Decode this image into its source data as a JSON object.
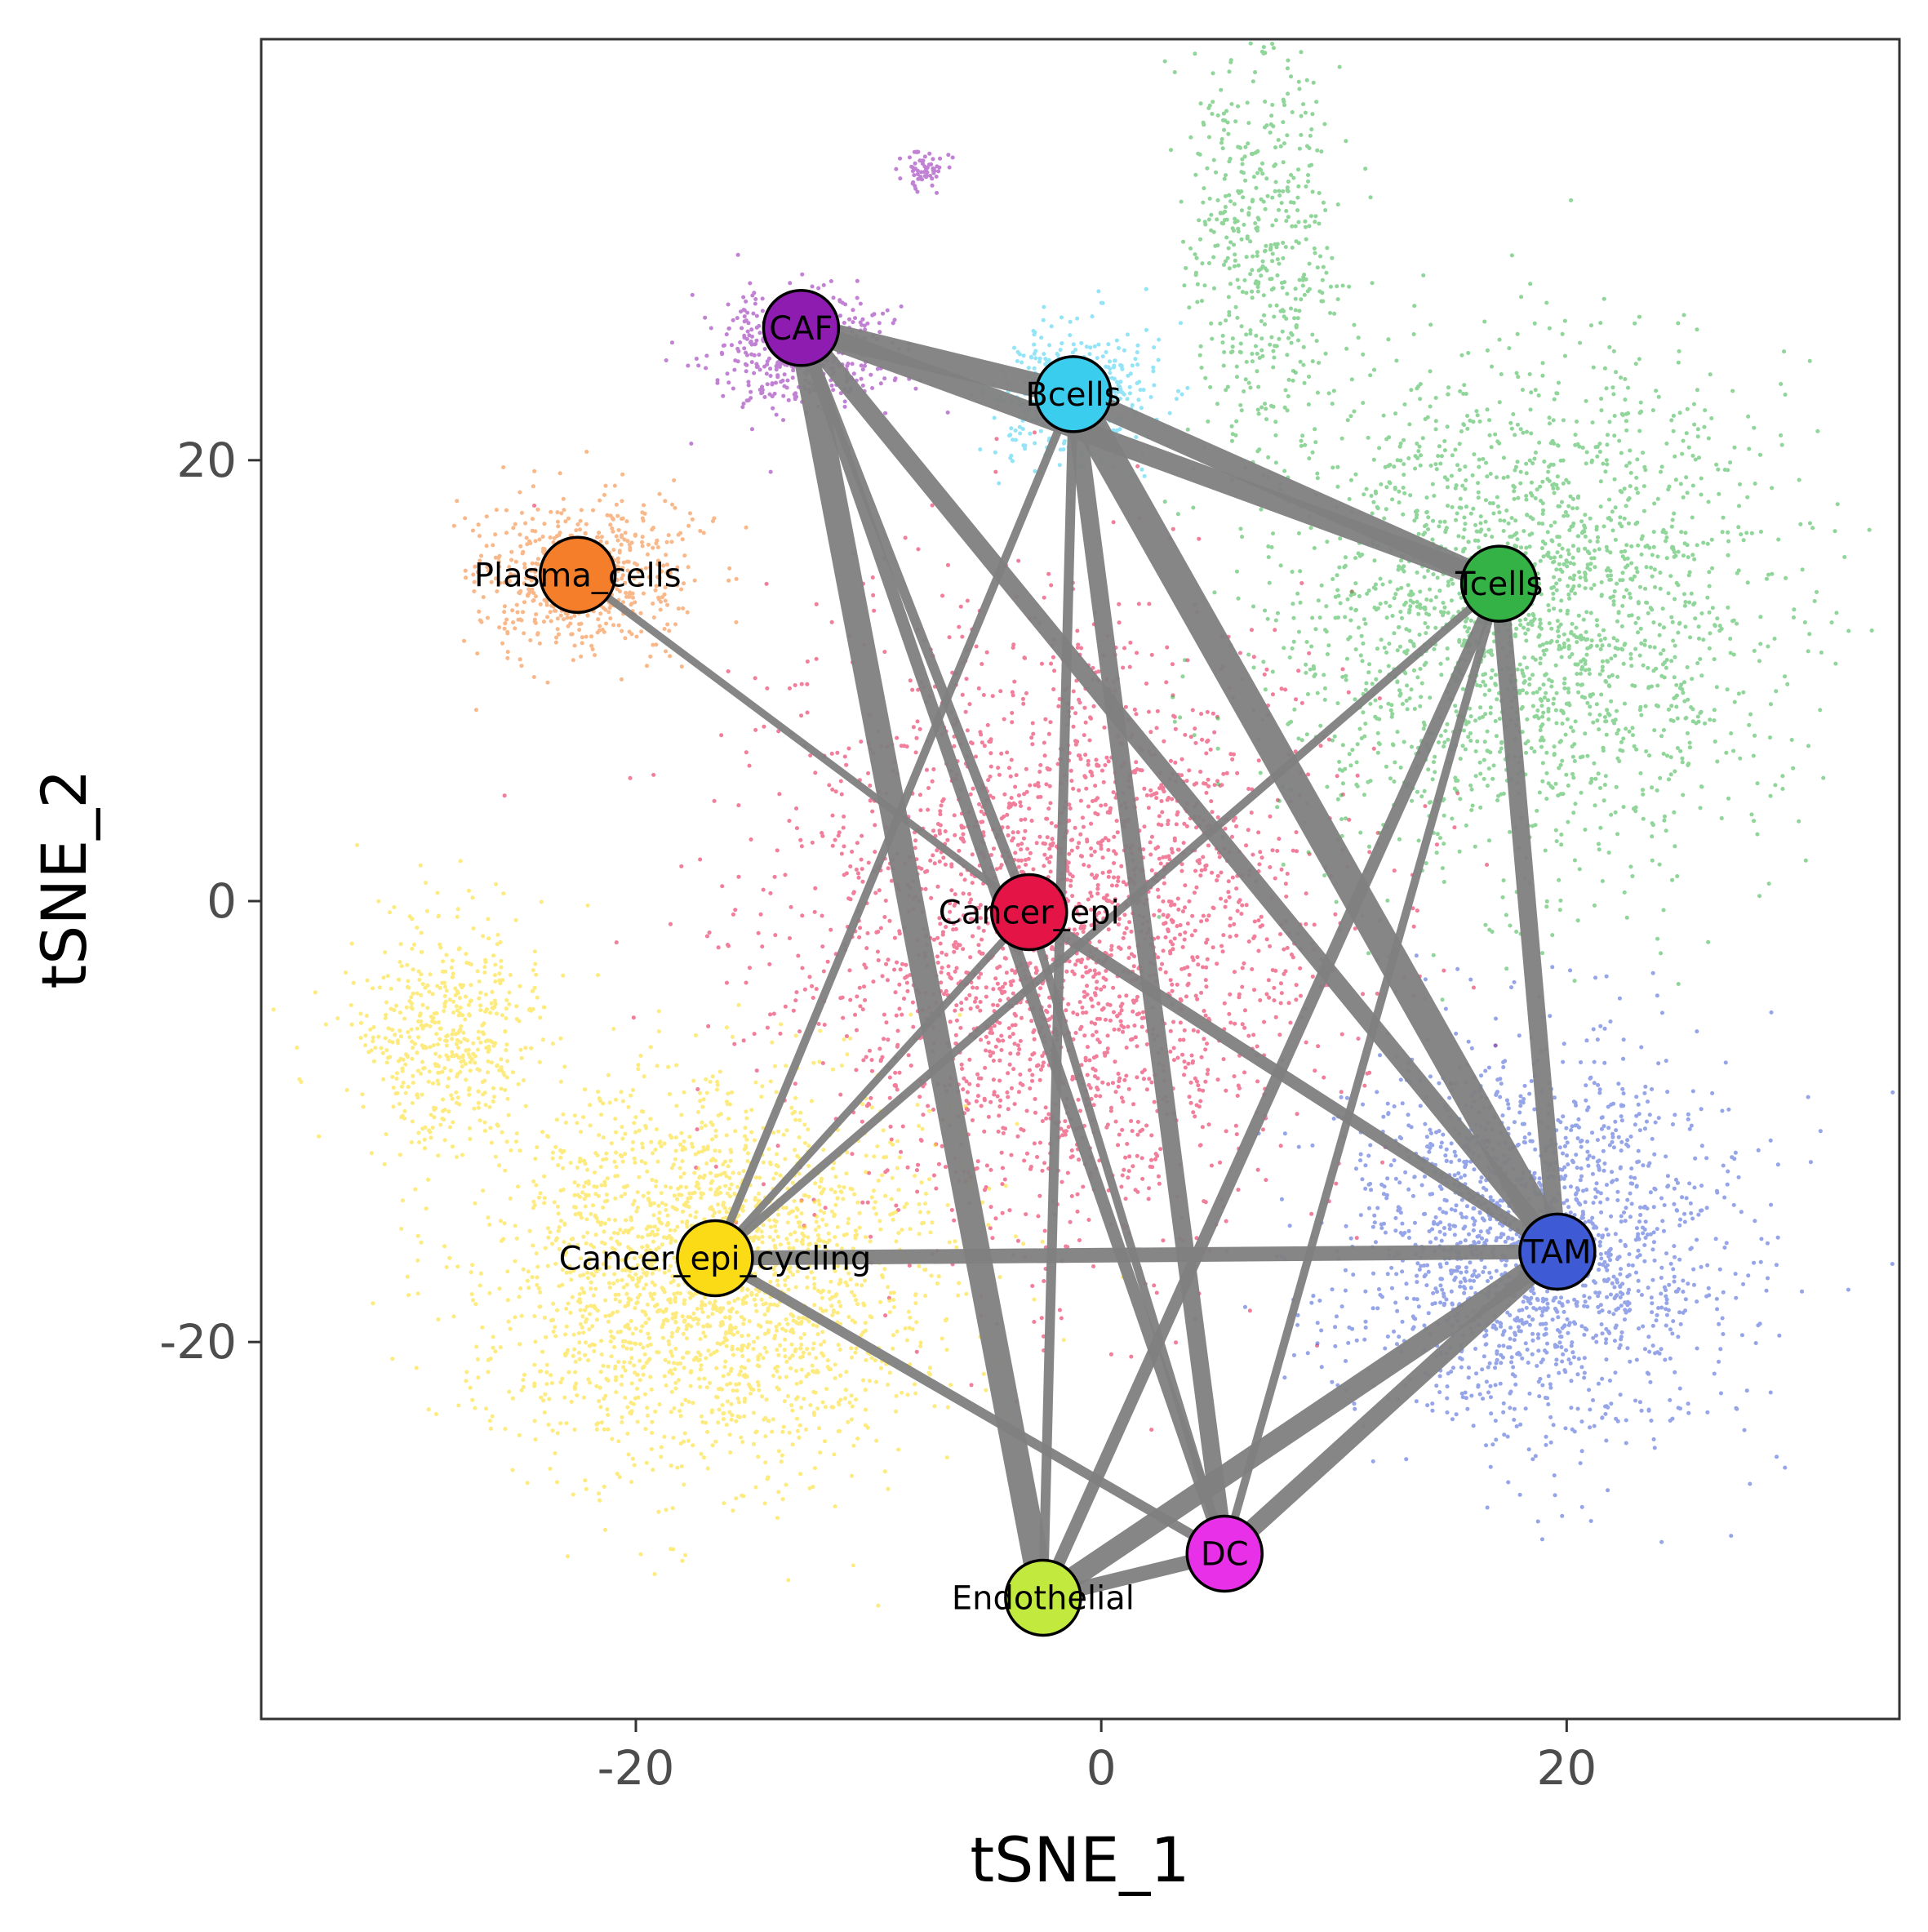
{
  "chart_data": {
    "type": "scatter",
    "title": "",
    "xlabel": "tSNE_1",
    "ylabel": "tSNE_2",
    "xlim": [
      -36.1,
      34.3
    ],
    "ylim": [
      -37.1,
      39.1
    ],
    "xticks": [
      -20,
      0,
      20
    ],
    "yticks": [
      -20,
      0,
      20
    ],
    "xtick_labels": [
      "-20",
      "0",
      "20"
    ],
    "ytick_labels": [
      "-20",
      "0",
      "20"
    ],
    "grid": false,
    "legend": "none",
    "edge_color": "#7f7f7f",
    "clusters": [
      {
        "name": "CAF",
        "color": "#8e1cb0",
        "x": -12.9,
        "y": 26.0
      },
      {
        "name": "Bcells",
        "color": "#3bcdee",
        "x": -1.2,
        "y": 23.0
      },
      {
        "name": "Tcells",
        "color": "#35b245",
        "x": 17.1,
        "y": 14.4
      },
      {
        "name": "Plasma_cells",
        "color": "#f47e2a",
        "x": -22.5,
        "y": 14.8
      },
      {
        "name": "Cancer_epi",
        "color": "#e51447",
        "x": -3.1,
        "y": -0.5
      },
      {
        "name": "Cancer_epi_cycling",
        "color": "#fbdb16",
        "x": -16.6,
        "y": -16.2
      },
      {
        "name": "TAM",
        "color": "#3e5bd5",
        "x": 19.6,
        "y": -15.9
      },
      {
        "name": "DC",
        "color": "#e830e8",
        "x": 5.3,
        "y": -29.6
      },
      {
        "name": "Endothelial",
        "color": "#c2ea3e",
        "x": -2.5,
        "y": -31.6
      }
    ],
    "edges": [
      {
        "from": "CAF",
        "to": "Bcells",
        "weight": 3.0
      },
      {
        "from": "CAF",
        "to": "Tcells",
        "weight": 2.5
      },
      {
        "from": "CAF",
        "to": "Endothelial",
        "weight": 3.2
      },
      {
        "from": "CAF",
        "to": "TAM",
        "weight": 2.2
      },
      {
        "from": "CAF",
        "to": "DC",
        "weight": 1.5
      },
      {
        "from": "CAF",
        "to": "Cancer_epi",
        "weight": 1.2
      },
      {
        "from": "Bcells",
        "to": "Tcells",
        "weight": 2.6
      },
      {
        "from": "Bcells",
        "to": "TAM",
        "weight": 3.8
      },
      {
        "from": "Bcells",
        "to": "DC",
        "weight": 2.2
      },
      {
        "from": "Bcells",
        "to": "Cancer_epi_cycling",
        "weight": 1.0
      },
      {
        "from": "Bcells",
        "to": "Endothelial",
        "weight": 1.2
      },
      {
        "from": "Tcells",
        "to": "TAM",
        "weight": 2.2
      },
      {
        "from": "Tcells",
        "to": "Cancer_epi_cycling",
        "weight": 1.0
      },
      {
        "from": "Tcells",
        "to": "DC",
        "weight": 1.0
      },
      {
        "from": "Tcells",
        "to": "Endothelial",
        "weight": 1.5
      },
      {
        "from": "Plasma_cells",
        "to": "Cancer_epi",
        "weight": 0.9
      },
      {
        "from": "Cancer_epi",
        "to": "TAM",
        "weight": 1.5
      },
      {
        "from": "Cancer_epi",
        "to": "Cancer_epi_cycling",
        "weight": 0.9
      },
      {
        "from": "Cancer_epi",
        "to": "DC",
        "weight": 1.0
      },
      {
        "from": "Cancer_epi_cycling",
        "to": "TAM",
        "weight": 1.8
      },
      {
        "from": "Cancer_epi_cycling",
        "to": "DC",
        "weight": 1.2
      },
      {
        "from": "TAM",
        "to": "DC",
        "weight": 2.2
      },
      {
        "from": "TAM",
        "to": "Endothelial",
        "weight": 2.6
      },
      {
        "from": "DC",
        "to": "Endothelial",
        "weight": 1.8
      }
    ]
  }
}
